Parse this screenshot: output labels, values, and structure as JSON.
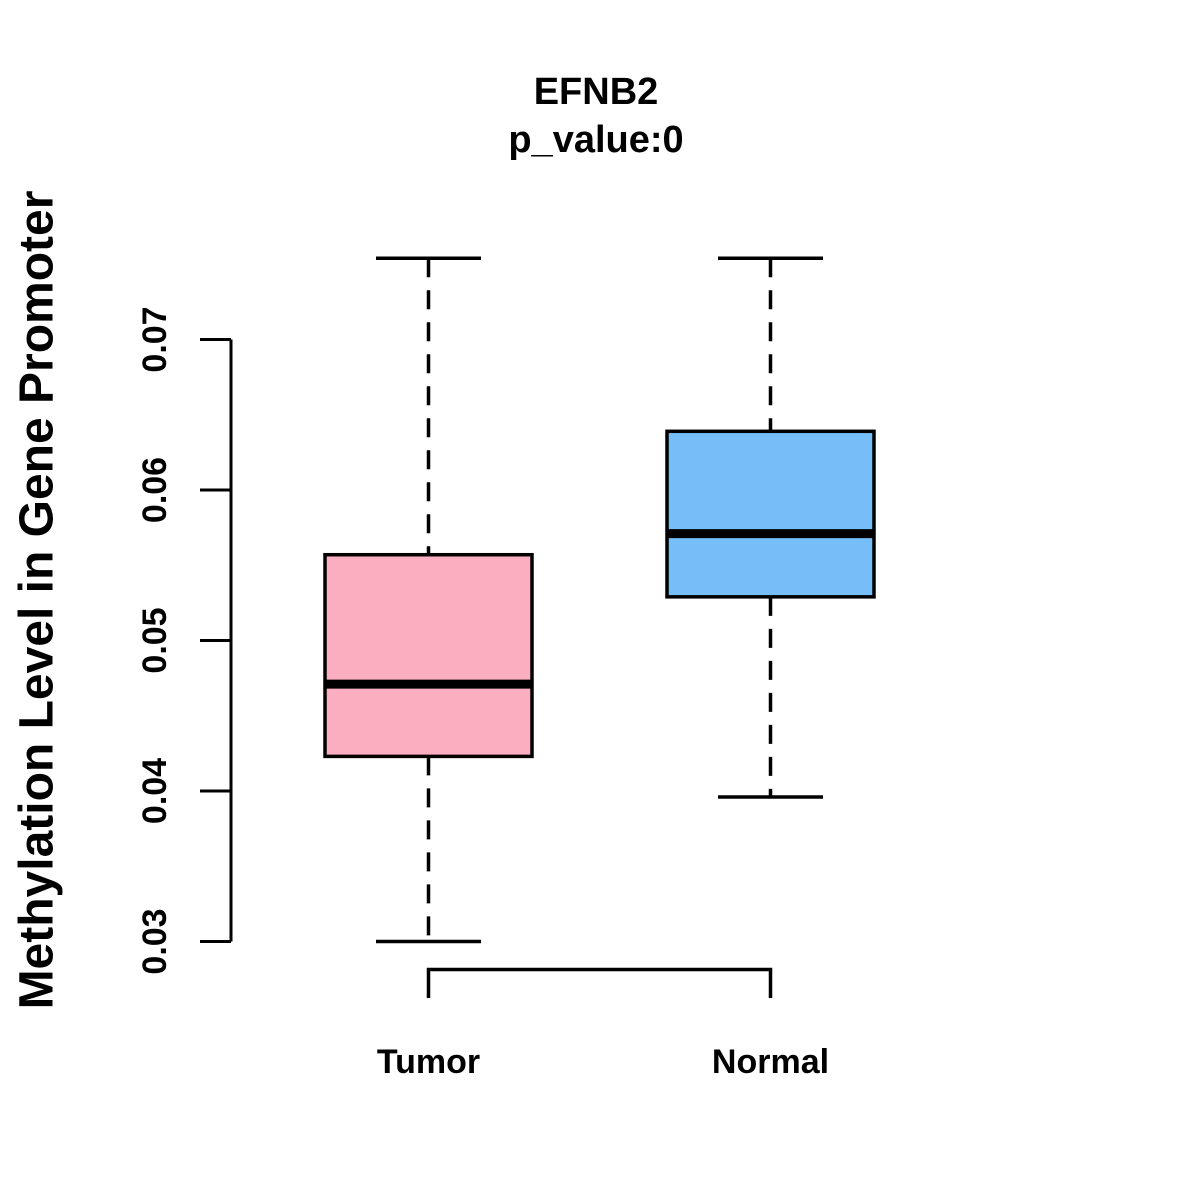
{
  "chart_data": {
    "type": "boxplot",
    "title": "EFNB2",
    "subtitle": "p_value:0",
    "ylabel": "Methylation Level in Gene Promoter",
    "xlabel": "",
    "ylim": [
      0.03,
      0.0755
    ],
    "grid": false,
    "y_ticks": [
      {
        "value": 0.03,
        "label": "0.03"
      },
      {
        "value": 0.04,
        "label": "0.04"
      },
      {
        "value": 0.05,
        "label": "0.05"
      },
      {
        "value": 0.06,
        "label": "0.06"
      },
      {
        "value": 0.07,
        "label": "0.07"
      }
    ],
    "categories": [
      "Tumor",
      "Normal"
    ],
    "groups": [
      {
        "label": "Tumor",
        "color": "#FBAEC0",
        "whisker_low": 0.03,
        "q1": 0.0423,
        "median": 0.0471,
        "q3": 0.0557,
        "whisker_high": 0.0754
      },
      {
        "label": "Normal",
        "color": "#75BEF7",
        "whisker_low": 0.0396,
        "q1": 0.0529,
        "median": 0.0571,
        "q3": 0.0639,
        "whisker_high": 0.0754
      }
    ],
    "axis_color": "#000000",
    "background": "#FFFFFF"
  }
}
